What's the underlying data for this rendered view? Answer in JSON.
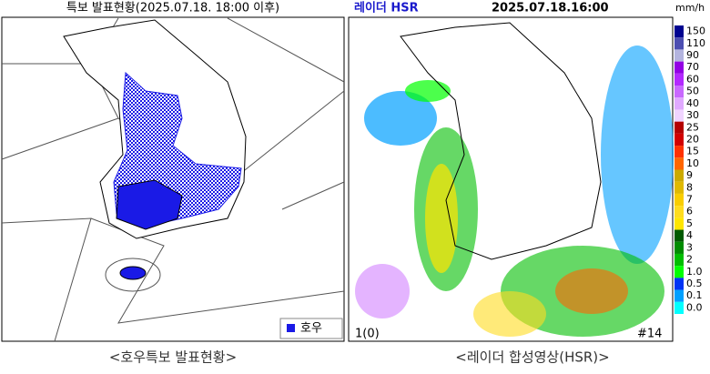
{
  "warning_map": {
    "title": "특보 발표현황(2025.07.18. 18:00 이후)",
    "legend": "호우",
    "caption": "<호우특보 발표현황>"
  },
  "radar": {
    "title": "레이더 HSR",
    "time": "2025.07.18.16:00",
    "unit": "mm/h",
    "frame": "1(0)",
    "station": "#14",
    "caption": "<레이더 합성영상(HSR)>",
    "scale": [
      {
        "label": "150",
        "color": "#000390"
      },
      {
        "label": "110",
        "color": "#4c4eb1"
      },
      {
        "label": "90",
        "color": "#b3b4de"
      },
      {
        "label": "70",
        "color": "#9300e4"
      },
      {
        "label": "60",
        "color": "#b329ff"
      },
      {
        "label": "50",
        "color": "#c969ff"
      },
      {
        "label": "40",
        "color": "#e0a9ff"
      },
      {
        "label": "30",
        "color": "#f0d4ff"
      },
      {
        "label": "25",
        "color": "#b40000"
      },
      {
        "label": "20",
        "color": "#d20000"
      },
      {
        "label": "15",
        "color": "#ff3200"
      },
      {
        "label": "10",
        "color": "#ff6600"
      },
      {
        "label": "9",
        "color": "#ccaa00"
      },
      {
        "label": "8",
        "color": "#e0b900"
      },
      {
        "label": "7",
        "color": "#f9cd00"
      },
      {
        "label": "6",
        "color": "#ffdc1f"
      },
      {
        "label": "5",
        "color": "#ffe600"
      },
      {
        "label": "4",
        "color": "#005a00"
      },
      {
        "label": "3",
        "color": "#008c00"
      },
      {
        "label": "2",
        "color": "#00be00"
      },
      {
        "label": "1.0",
        "color": "#00ff00"
      },
      {
        "label": "0.5",
        "color": "#0033f5"
      },
      {
        "label": "0.1",
        "color": "#00a0ff"
      },
      {
        "label": "0.0",
        "color": "#00ffff"
      }
    ]
  }
}
